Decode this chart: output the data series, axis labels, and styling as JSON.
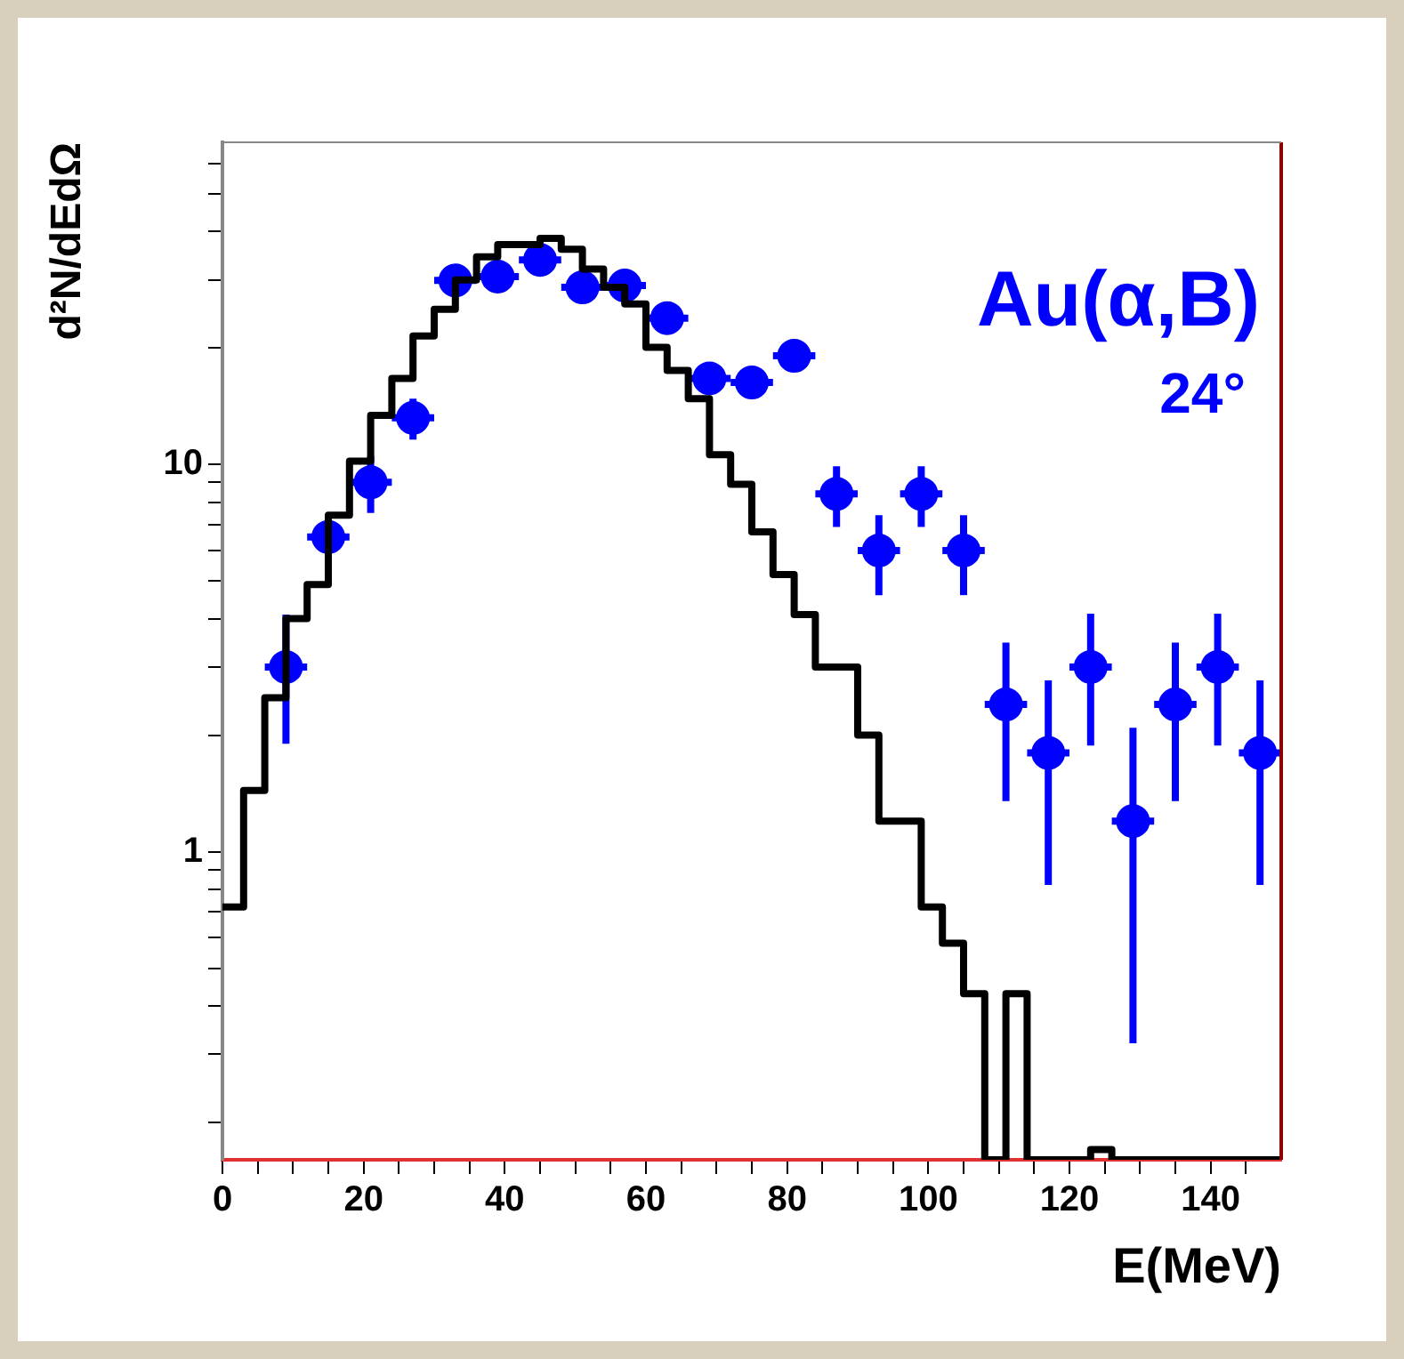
{
  "chart_data": {
    "type": "histogram",
    "xlabel": "E(MeV)",
    "ylabel": "d²N/dEdΩ",
    "annotations": [
      "Au(α,B)",
      "24°"
    ],
    "log": "y",
    "grid": false,
    "legend": false,
    "marker": "circle",
    "xlim": [
      0,
      150
    ],
    "xticks": [
      0,
      {
        "value": 5,
        "label": null
      },
      {
        "value": 10,
        "label": null
      },
      {
        "value": 15,
        "label": null
      },
      20,
      {
        "value": 25,
        "label": null
      },
      {
        "value": 30,
        "label": null
      },
      {
        "value": 35,
        "label": null
      },
      40,
      {
        "value": 45,
        "label": null
      },
      {
        "value": 50,
        "label": null
      },
      {
        "value": 55,
        "label": null
      },
      60,
      {
        "value": 65,
        "label": null
      },
      {
        "value": 70,
        "label": null
      },
      {
        "value": 75,
        "label": null
      },
      80,
      {
        "value": 85,
        "label": null
      },
      {
        "value": 90,
        "label": null
      },
      {
        "value": 95,
        "label": null
      },
      100,
      {
        "value": 105,
        "label": null
      },
      {
        "value": 110,
        "label": null
      },
      {
        "value": 115,
        "label": null
      },
      120,
      {
        "value": 125,
        "label": null
      },
      {
        "value": 130,
        "label": null
      },
      {
        "value": 135,
        "label": null
      },
      140,
      {
        "value": 145,
        "label": null
      }
    ],
    "ylim": [
      0.16,
      68
    ],
    "yticks": [
      {
        "value": 0.2,
        "label": null
      },
      {
        "value": 0.3,
        "label": null
      },
      {
        "value": 0.4,
        "label": null
      },
      {
        "value": 0.5,
        "label": null
      },
      {
        "value": 0.6,
        "label": null
      },
      {
        "value": 0.7,
        "label": null
      },
      {
        "value": 0.8,
        "label": null
      },
      {
        "value": 0.9,
        "label": null
      },
      1,
      {
        "value": 2,
        "label": null
      },
      {
        "value": 3,
        "label": null
      },
      {
        "value": 4,
        "label": null
      },
      {
        "value": 5,
        "label": null
      },
      {
        "value": 6,
        "label": null
      },
      {
        "value": 7,
        "label": null
      },
      {
        "value": 8,
        "label": null
      },
      {
        "value": 9,
        "label": null
      },
      10,
      {
        "value": 20,
        "label": null
      },
      {
        "value": 30,
        "label": null
      },
      {
        "value": 40,
        "label": null
      },
      {
        "value": 50,
        "label": null
      },
      {
        "value": 60,
        "label": null
      }
    ],
    "series": [
      {
        "type": "histogram",
        "color": "#000000",
        "bins": [
          0,
          3,
          6,
          9,
          12,
          15,
          18,
          21,
          24,
          27,
          30,
          33,
          36,
          39,
          42,
          45,
          48,
          51,
          54,
          57,
          60,
          63,
          66,
          69,
          72,
          75,
          78,
          81,
          84,
          87,
          90,
          93,
          96,
          99,
          102,
          105,
          108,
          111,
          114,
          117,
          120,
          123,
          126,
          129,
          132,
          135,
          138,
          141,
          144,
          147,
          150
        ],
        "values": [
          0.72,
          1.44,
          2.5,
          4.0,
          4.9,
          7.4,
          10.2,
          13.4,
          16.7,
          21.5,
          25.2,
          30,
          34.4,
          37,
          37,
          38.4,
          36,
          32,
          28.7,
          26,
          20.1,
          17.5,
          14.8,
          10.6,
          8.9,
          6.7,
          5.2,
          4.1,
          3.0,
          3.0,
          2.0,
          1.2,
          1.2,
          0.72,
          0.58,
          0.43,
          null,
          0.43,
          null,
          null,
          null,
          0.17,
          null,
          null,
          null,
          null,
          null,
          null,
          null,
          null
        ]
      },
      {
        "type": "scatter",
        "color": "#0000ff",
        "x": [
          9,
          15,
          21,
          27,
          33,
          39,
          45,
          51,
          57,
          63,
          69,
          75,
          81,
          87,
          93,
          99,
          105,
          111,
          117,
          123,
          129,
          135,
          141,
          147
        ],
        "values": [
          3.0,
          6.5,
          9.0,
          13.2,
          29.9,
          30.6,
          33.8,
          28.7,
          29.0,
          23.9,
          16.7,
          16.3,
          19.1,
          8.4,
          6.0,
          8.4,
          6.0,
          2.4,
          1.8,
          3.0,
          1.2,
          2.4,
          3.0,
          1.8
        ],
        "errors": [
          1.1,
          null,
          1.5,
          1.6,
          null,
          null,
          null,
          null,
          null,
          null,
          null,
          null,
          null,
          1.5,
          1.4,
          1.5,
          1.4,
          [
            1.35,
            3.47
          ],
          [
            0.82,
            2.77
          ],
          [
            1.88,
            4.12
          ],
          [
            0.32,
            2.09
          ],
          [
            1.35,
            3.47
          ],
          [
            1.88,
            4.12
          ],
          [
            0.82,
            2.77
          ]
        ],
        "xerrors": [
          3,
          3,
          3,
          3,
          3,
          3,
          3,
          3,
          3,
          3,
          3,
          3,
          3,
          3,
          3,
          3,
          3,
          3,
          3,
          3,
          3,
          3,
          3,
          3
        ]
      }
    ]
  }
}
